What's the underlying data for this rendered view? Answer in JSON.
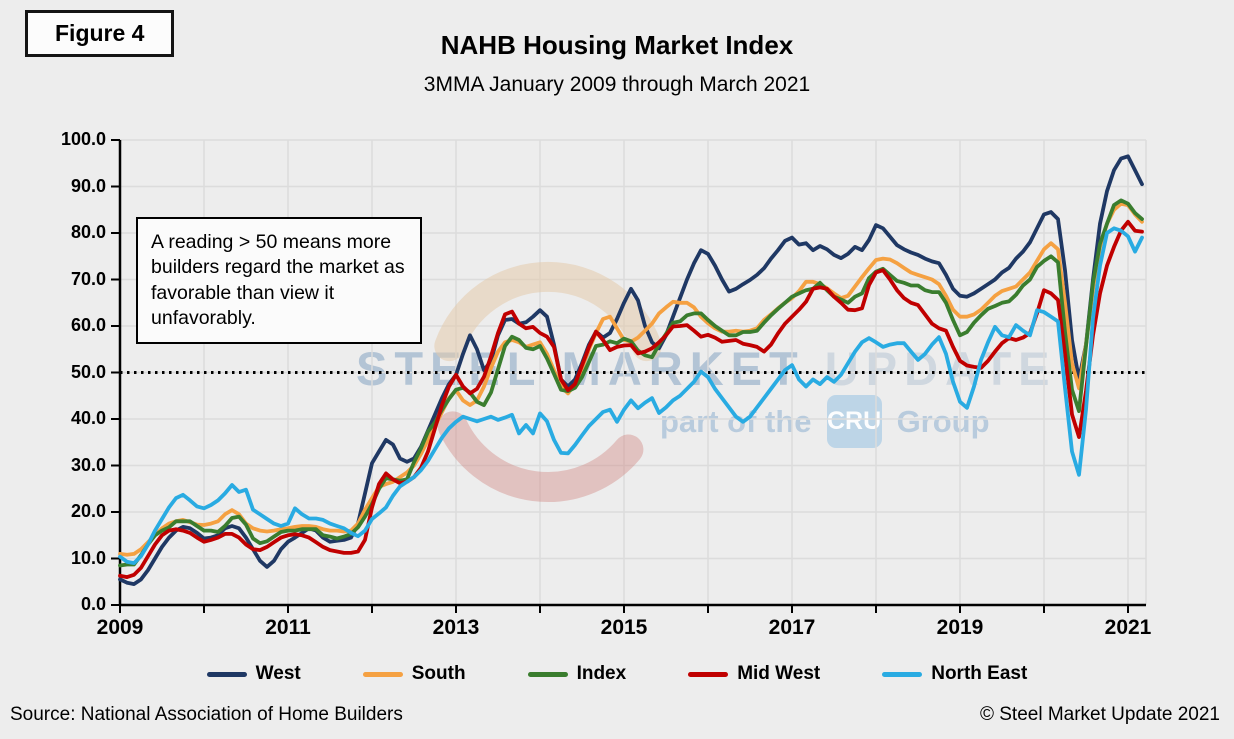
{
  "figure": {
    "label": "Figure 4"
  },
  "header": {
    "title": "NAHB Housing Market Index",
    "subtitle": "3MMA January 2009 through March 2021"
  },
  "annotation": {
    "text": "A reading > 50 means more builders regard the market as favorable than view it unfavorably."
  },
  "watermark": {
    "line1a": "STEEL MARKET",
    "line1b": " UPDATE",
    "part_prefix": "part of the",
    "cru": "CRU",
    "part_suffix": "Group"
  },
  "footer": {
    "source": "Source: National Association of Home Builders",
    "copyright": "© Steel Market Update 2021"
  },
  "chart_data": {
    "type": "line",
    "title": "NAHB Housing Market Index",
    "subtitle": "3MMA January 2009 through March 2021",
    "x_start": "2009-01",
    "x_end": "2021-03",
    "x_interval": "monthly",
    "x_ticks": [
      "2009",
      "2011",
      "2013",
      "2015",
      "2017",
      "2019",
      "2021"
    ],
    "y_ticks": [
      "0.0",
      "10.0",
      "20.0",
      "30.0",
      "40.0",
      "50.0",
      "60.0",
      "70.0",
      "80.0",
      "90.0",
      "100.0"
    ],
    "ylim": [
      0,
      100
    ],
    "grid": true,
    "legend_position": "bottom",
    "reference_line": {
      "value": 50,
      "style": "dotted",
      "color": "#000000"
    },
    "series": [
      {
        "name": "West",
        "color": "#1F3864",
        "values": [
          5.5,
          4.8,
          4.5,
          5.5,
          7.5,
          10,
          12.5,
          14.5,
          16,
          16.8,
          16.5,
          15.5,
          14.3,
          14.5,
          15,
          16.5,
          17,
          16.5,
          14.5,
          12,
          9.5,
          8.2,
          9.5,
          12,
          13.6,
          14.5,
          15.5,
          16.5,
          16,
          14.5,
          13.6,
          13.8,
          14,
          14.5,
          17.5,
          24,
          30.5,
          33,
          35.5,
          34.5,
          31.5,
          30.8,
          31.5,
          34,
          37.5,
          41,
          44.5,
          47.5,
          49.5,
          54,
          58,
          55,
          50.5,
          52.5,
          58,
          61.3,
          61.5,
          60.5,
          60.8,
          62,
          63.4,
          62,
          56,
          48.5,
          47,
          48.5,
          52,
          56,
          58.8,
          57.5,
          58.5,
          61.5,
          65,
          68,
          65.5,
          60,
          56.5,
          55.2,
          58,
          62,
          66,
          70,
          73.5,
          76.3,
          75.5,
          73,
          70,
          67.4,
          68,
          69,
          69.9,
          71,
          72.4,
          74.5,
          76.3,
          78.3,
          79,
          77.5,
          77.8,
          76.3,
          77.2,
          76.5,
          75.3,
          74.6,
          75.5,
          77,
          76.3,
          78.5,
          81.7,
          81,
          79.2,
          77.4,
          76.5,
          75.8,
          75.3,
          74.5,
          73.9,
          73.5,
          71,
          68,
          66.5,
          66.3,
          67,
          68,
          69,
          70,
          71.5,
          72.5,
          74.5,
          76,
          78,
          81,
          84,
          84.5,
          83,
          72,
          57,
          48.5,
          56,
          70,
          82,
          89,
          93.5,
          96,
          96.5,
          93.5,
          90.5
        ]
      },
      {
        "name": "South",
        "color": "#F5A142",
        "values": [
          11,
          10.8,
          11,
          12,
          13.5,
          15,
          16.5,
          17.5,
          18,
          18.3,
          17.8,
          17.3,
          17.2,
          17.5,
          18,
          19.5,
          20.4,
          19.5,
          17.5,
          16.5,
          16,
          15.8,
          16,
          16.3,
          16.5,
          16.8,
          17,
          17,
          16.8,
          16.3,
          16,
          16,
          15.8,
          16,
          17.5,
          20.5,
          23,
          25.4,
          26,
          26.5,
          27.5,
          28.5,
          30,
          32.5,
          35.5,
          38.5,
          41.5,
          44.5,
          46.2,
          44,
          43,
          44,
          47,
          51,
          54.5,
          56.5,
          57,
          56.5,
          55.5,
          56,
          56.5,
          54,
          50.5,
          47,
          45.5,
          47.5,
          51,
          55,
          58.5,
          61.5,
          62,
          59.5,
          57,
          56.6,
          57.5,
          59,
          60.5,
          62.7,
          64,
          65.2,
          65,
          65,
          64,
          62,
          60.6,
          59.5,
          58.8,
          58.8,
          59,
          58.8,
          59,
          59.5,
          61.3,
          62.5,
          63.8,
          65,
          66,
          67.5,
          69.5,
          69.5,
          69,
          68.1,
          67,
          66,
          66.5,
          68.5,
          70.5,
          72.4,
          74.2,
          74.5,
          74.3,
          73.5,
          72.5,
          71.5,
          71,
          70.5,
          70,
          69,
          66.5,
          63.5,
          62,
          62,
          62.5,
          63.5,
          65,
          66.5,
          67.5,
          68,
          68.5,
          70,
          71.5,
          74,
          76.5,
          77.8,
          76.5,
          65,
          52,
          46.6,
          56,
          68,
          77,
          82,
          85,
          86.3,
          86,
          84,
          82.4
        ]
      },
      {
        "name": "Index",
        "color": "#3A7D2E",
        "values": [
          8.5,
          8.7,
          8.7,
          10.7,
          13,
          15,
          16,
          16.7,
          18,
          18,
          18,
          17,
          16,
          16,
          15.7,
          17,
          18.7,
          19,
          17.3,
          14.3,
          13.3,
          13.7,
          14.7,
          15.7,
          16,
          16,
          16.3,
          16.3,
          16.3,
          15,
          14.7,
          14.3,
          14.7,
          15.3,
          16.7,
          19,
          21.7,
          25,
          27.3,
          27,
          26.7,
          27,
          30.7,
          33.7,
          37.3,
          39.3,
          42,
          44.3,
          46.3,
          46.7,
          45.7,
          43.7,
          43,
          45.7,
          50.7,
          55.7,
          57.7,
          57,
          55.3,
          55,
          55.7,
          53,
          49.7,
          46.3,
          46,
          46.7,
          49,
          52.3,
          55.7,
          56,
          56.7,
          56.3,
          57.3,
          56.7,
          54.7,
          53.7,
          53.3,
          56,
          58.3,
          60.7,
          61,
          62.3,
          62.7,
          62.7,
          61.3,
          60,
          59,
          58,
          58,
          58.7,
          58.7,
          59,
          60.7,
          62.3,
          63.7,
          65,
          66.3,
          67,
          67.7,
          68,
          69.3,
          67.7,
          66.3,
          65.7,
          65,
          66.3,
          67,
          70.3,
          71.7,
          72.3,
          71,
          69.7,
          69.3,
          68.7,
          68.7,
          67.7,
          67.3,
          67.3,
          65,
          61.3,
          58,
          58.7,
          60.7,
          62.3,
          63.7,
          64.3,
          65,
          65.3,
          66.7,
          68.7,
          70,
          72.7,
          74,
          75,
          73.7,
          58.7,
          46.3,
          41.7,
          55.7,
          69.3,
          77.7,
          82,
          86,
          87,
          86.3,
          84.3,
          83
        ]
      },
      {
        "name": "Mid West",
        "color": "#C00000",
        "values": [
          6.3,
          6,
          6.5,
          8,
          10.5,
          13,
          15,
          16,
          16.3,
          16,
          15.5,
          14.5,
          13.6,
          14,
          14.5,
          15.3,
          15.3,
          14.5,
          13,
          12,
          11.8,
          12.5,
          13.5,
          14.5,
          15,
          15.2,
          15,
          14.5,
          13.5,
          12.5,
          11.8,
          11.5,
          11.2,
          11.2,
          11.5,
          14,
          21,
          26,
          28.3,
          27,
          26.2,
          26.5,
          27.5,
          29.5,
          33,
          38,
          43,
          47,
          49.5,
          47,
          45.5,
          46.5,
          49.1,
          53.5,
          58.5,
          62.5,
          63.1,
          60.5,
          59.5,
          59.8,
          58.5,
          57.7,
          55.5,
          48.5,
          46.2,
          47.5,
          51.5,
          55.5,
          58.8,
          57,
          54.8,
          55.5,
          55.8,
          55.9,
          54.1,
          54.5,
          55.2,
          56.5,
          58,
          59.9,
          60,
          60.2,
          59,
          57.7,
          58.1,
          57.5,
          56.6,
          56.8,
          57,
          56.2,
          55.9,
          55.5,
          54.5,
          56,
          58.4,
          60.5,
          62,
          63.5,
          65.2,
          68,
          68.3,
          68,
          66.3,
          65,
          63.5,
          63.4,
          63.8,
          68.8,
          71.5,
          72,
          70,
          67.7,
          66,
          65,
          64.5,
          62.5,
          60.5,
          59.5,
          59,
          55.5,
          52.5,
          51.5,
          51.2,
          51,
          52.5,
          54.5,
          56.3,
          57.4,
          57,
          57.5,
          58.5,
          62.7,
          67.7,
          67,
          65.6,
          54,
          41,
          36.1,
          46,
          58,
          67,
          73,
          77,
          80.5,
          82.4,
          80.5,
          80.3
        ]
      },
      {
        "name": "North East",
        "color": "#29ABE2",
        "values": [
          10.4,
          9.3,
          9,
          10.5,
          13,
          16,
          18.5,
          21,
          23,
          23.7,
          22.5,
          21.2,
          20.8,
          21.5,
          22.5,
          24,
          25.8,
          24.3,
          24.8,
          20.5,
          19.5,
          18.5,
          17.5,
          17,
          17.5,
          20.8,
          19.5,
          18.6,
          18.6,
          18.3,
          17.5,
          17,
          16.5,
          15.5,
          14.8,
          16,
          18.5,
          19.7,
          21,
          23.5,
          25.5,
          26.5,
          27.5,
          29,
          31,
          33.5,
          36,
          38,
          39.4,
          40.5,
          40,
          39.5,
          40,
          40.5,
          39.8,
          40.3,
          40.9,
          36.9,
          38.7,
          36.9,
          41.2,
          39.5,
          35.5,
          32.7,
          32.6,
          34.4,
          36.5,
          38.5,
          40,
          41.5,
          42,
          39.4,
          42,
          44,
          42.3,
          43.5,
          44.5,
          41.3,
          42.5,
          44,
          45,
          46.5,
          48,
          50.2,
          49,
          46.5,
          44.5,
          42.5,
          40.5,
          39.4,
          40.5,
          42.5,
          44.5,
          46.5,
          48.5,
          50.5,
          51.6,
          48.5,
          47,
          48.5,
          47.5,
          49,
          48,
          49.5,
          52,
          54.5,
          56.5,
          57.4,
          56.5,
          55.5,
          56,
          56.3,
          56.3,
          54.5,
          52.7,
          54,
          56,
          57.6,
          54,
          48,
          43.7,
          42.4,
          47,
          52.7,
          56.5,
          59.8,
          58,
          57.6,
          60.2,
          59,
          58,
          63.4,
          63,
          62,
          61,
          46.7,
          33,
          28,
          42,
          61.7,
          73,
          80,
          81,
          80.5,
          79.3,
          76,
          79
        ]
      }
    ]
  }
}
